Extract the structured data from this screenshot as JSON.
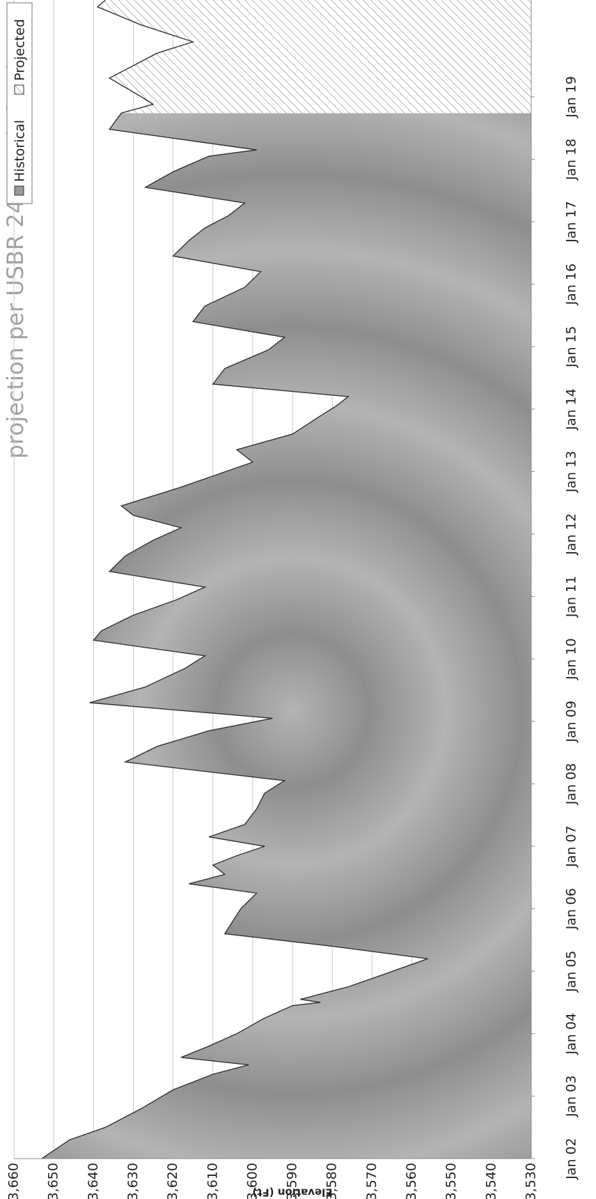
{
  "chart_data": {
    "type": "area",
    "title": "projection per USBR 24 Month Study",
    "y_label": "Elevation (Ft)",
    "xlim": [
      2002,
      2020.55
    ],
    "ylim": [
      3530,
      3660
    ],
    "xticks": [
      {
        "value": 2002,
        "label": "Jan 02"
      },
      {
        "value": 2003,
        "label": "Jan 03"
      },
      {
        "value": 2004,
        "label": "Jan 04"
      },
      {
        "value": 2005,
        "label": "Jan 05"
      },
      {
        "value": 2006,
        "label": "Jan 06"
      },
      {
        "value": 2007,
        "label": "Jan 07"
      },
      {
        "value": 2008,
        "label": "Jan 08"
      },
      {
        "value": 2009,
        "label": "Jan 09"
      },
      {
        "value": 2010,
        "label": "Jan 10"
      },
      {
        "value": 2011,
        "label": "Jan 11"
      },
      {
        "value": 2012,
        "label": "Jan 12"
      },
      {
        "value": 2013,
        "label": "Jan 13"
      },
      {
        "value": 2014,
        "label": "Jan 14"
      },
      {
        "value": 2015,
        "label": "Jan 15"
      },
      {
        "value": 2016,
        "label": "Jan 16"
      },
      {
        "value": 2017,
        "label": "Jan 17"
      },
      {
        "value": 2018,
        "label": "Jan 18"
      },
      {
        "value": 2019,
        "label": "Jan 19"
      }
    ],
    "yticks": [
      {
        "value": 3530,
        "label": "3,530"
      },
      {
        "value": 3540,
        "label": "3,540"
      },
      {
        "value": 3550,
        "label": "3,550"
      },
      {
        "value": 3560,
        "label": "3,560"
      },
      {
        "value": 3570,
        "label": "3,570"
      },
      {
        "value": 3580,
        "label": "3,580"
      },
      {
        "value": 3590,
        "label": "3,590"
      },
      {
        "value": 3600,
        "label": "3,600"
      },
      {
        "value": 3610,
        "label": "3,610"
      },
      {
        "value": 3620,
        "label": "3,620"
      },
      {
        "value": 3630,
        "label": "3,630"
      },
      {
        "value": 3640,
        "label": "3,640"
      },
      {
        "value": 3650,
        "label": "3,650"
      },
      {
        "value": 3660,
        "label": "3,660"
      }
    ],
    "grid": true,
    "legend": "top-right",
    "series": [
      {
        "name": "Historical",
        "color": "#9a9a9a",
        "hatch": false,
        "x": [
          2002.0,
          2002.3,
          2002.5,
          2002.8,
          2003.1,
          2003.35,
          2003.5,
          2003.62,
          2003.8,
          2004.0,
          2004.25,
          2004.45,
          2004.5,
          2004.55,
          2004.75,
          2004.95,
          2005.2,
          2005.4,
          2005.6,
          2005.8,
          2006.0,
          2006.25,
          2006.4,
          2006.55,
          2006.7,
          2006.85,
          2007.0,
          2007.15,
          2007.35,
          2007.6,
          2007.85,
          2008.05,
          2008.35,
          2008.6,
          2008.85,
          2009.05,
          2009.3,
          2009.55,
          2009.85,
          2010.05,
          2010.3,
          2010.45,
          2010.7,
          2010.95,
          2011.15,
          2011.4,
          2011.65,
          2011.9,
          2012.1,
          2012.3,
          2012.45,
          2012.75,
          2012.95,
          2013.15,
          2013.35,
          2013.6,
          2013.85,
          2014.05,
          2014.2,
          2014.4,
          2014.65,
          2014.95,
          2015.15,
          2015.4,
          2015.65,
          2015.95,
          2016.2,
          2016.45,
          2016.7,
          2016.9,
          2017.1,
          2017.3,
          2017.55,
          2017.8,
          2018.05,
          2018.15,
          2018.48,
          2018.74
        ],
        "values": [
          3653,
          3646,
          3637,
          3628,
          3620,
          3610,
          3601,
          3618,
          3611,
          3604,
          3597,
          3590,
          3583,
          3588,
          3576,
          3567,
          3556,
          3580,
          3607,
          3605,
          3603,
          3599,
          3616,
          3607,
          3610,
          3604,
          3597,
          3611,
          3602,
          3599,
          3597,
          3592,
          3632,
          3624,
          3611,
          3595,
          3641,
          3627,
          3617,
          3612,
          3640,
          3638,
          3630,
          3619,
          3612,
          3636,
          3632,
          3625,
          3618,
          3630,
          3633,
          3618,
          3609,
          3600,
          3604,
          3590,
          3584,
          3579,
          3576,
          3610,
          3607,
          3596,
          3592,
          3615,
          3612,
          3602,
          3598,
          3620,
          3616,
          3612,
          3606,
          3602,
          3627,
          3620,
          3611,
          3599,
          3636,
          3633
        ]
      },
      {
        "name": "Projected",
        "color": "#bdbdbd",
        "hatch": true,
        "x": [
          2018.74,
          2018.88,
          2019.0,
          2019.3,
          2019.5,
          2019.7,
          2019.88,
          2020.15,
          2020.44,
          2020.55
        ],
        "values": [
          3633,
          3625,
          3628,
          3636,
          3630,
          3624,
          3615,
          3628,
          3639,
          3637
        ]
      }
    ]
  }
}
